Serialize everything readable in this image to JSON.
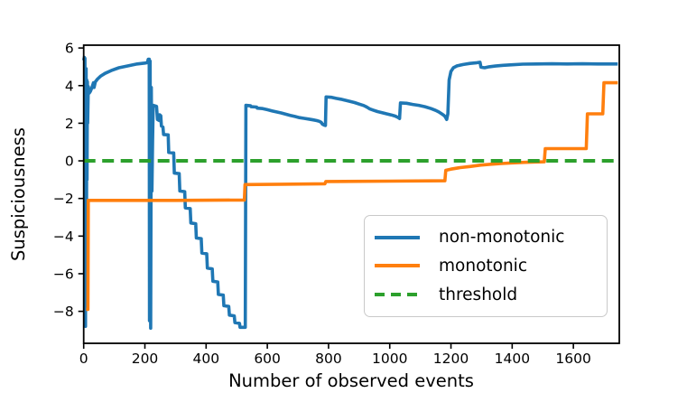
{
  "chart_data": {
    "type": "line",
    "title": "",
    "xlabel": "Number of observed events",
    "ylabel": "Suspiciousness",
    "xlim": [
      0,
      1750
    ],
    "ylim": [
      -9.7,
      6.15
    ],
    "xticks": [
      0,
      200,
      400,
      600,
      800,
      1000,
      1200,
      1400,
      1600
    ],
    "yticks": [
      6,
      4,
      2,
      0,
      -2,
      -4,
      -6,
      -8
    ],
    "grid": false,
    "background": "#ffffff",
    "axis_color": "#000000",
    "legend": {
      "position": "lower-right-inside",
      "entries": [
        "non-monotonic",
        "monotonic",
        "threshold"
      ]
    },
    "series": [
      {
        "name": "non-monotonic",
        "color": "#1f77b4",
        "line_style": "solid",
        "points": [
          [
            0,
            5.35
          ],
          [
            2,
            5.5
          ],
          [
            4,
            5.45
          ],
          [
            5,
            -3.0
          ],
          [
            6,
            -8.8
          ],
          [
            7,
            2.0
          ],
          [
            8,
            4.9
          ],
          [
            9,
            -4.5
          ],
          [
            10,
            4.3
          ],
          [
            11,
            -1.0
          ],
          [
            12,
            4.2
          ],
          [
            13,
            2.0
          ],
          [
            15,
            3.95
          ],
          [
            18,
            3.6
          ],
          [
            22,
            3.7
          ],
          [
            28,
            3.95
          ],
          [
            32,
            4.15
          ],
          [
            34,
            3.9
          ],
          [
            38,
            4.2
          ],
          [
            45,
            4.35
          ],
          [
            55,
            4.5
          ],
          [
            70,
            4.65
          ],
          [
            90,
            4.8
          ],
          [
            115,
            4.95
          ],
          [
            145,
            5.05
          ],
          [
            175,
            5.15
          ],
          [
            200,
            5.2
          ],
          [
            208,
            5.22
          ],
          [
            211,
            5.4
          ],
          [
            214,
            5.4
          ],
          [
            215,
            -8.5
          ],
          [
            217,
            5.3
          ],
          [
            219,
            -8.9
          ],
          [
            221,
            3.9
          ],
          [
            223,
            -1.6
          ],
          [
            225,
            1.0
          ],
          [
            227,
            2.95
          ],
          [
            238,
            2.9
          ],
          [
            241,
            2.2
          ],
          [
            246,
            2.15
          ],
          [
            248,
            2.45
          ],
          [
            252,
            2.4
          ],
          [
            254,
            1.85
          ],
          [
            259,
            1.8
          ],
          [
            261,
            1.4
          ],
          [
            276,
            1.38
          ],
          [
            278,
            0.45
          ],
          [
            294,
            0.42
          ],
          [
            296,
            -0.65
          ],
          [
            312,
            -0.68
          ],
          [
            314,
            -1.6
          ],
          [
            330,
            -1.64
          ],
          [
            332,
            -2.5
          ],
          [
            348,
            -2.54
          ],
          [
            350,
            -3.3
          ],
          [
            366,
            -3.34
          ],
          [
            368,
            -4.1
          ],
          [
            384,
            -4.14
          ],
          [
            386,
            -4.9
          ],
          [
            402,
            -4.94
          ],
          [
            404,
            -5.7
          ],
          [
            420,
            -5.74
          ],
          [
            422,
            -6.4
          ],
          [
            438,
            -6.44
          ],
          [
            440,
            -7.1
          ],
          [
            456,
            -7.14
          ],
          [
            458,
            -7.7
          ],
          [
            474,
            -7.74
          ],
          [
            476,
            -8.2
          ],
          [
            492,
            -8.24
          ],
          [
            494,
            -8.6
          ],
          [
            509,
            -8.64
          ],
          [
            511,
            -8.85
          ],
          [
            528,
            -8.85
          ],
          [
            530,
            2.95
          ],
          [
            545,
            2.93
          ],
          [
            547,
            2.88
          ],
          [
            565,
            2.86
          ],
          [
            567,
            2.8
          ],
          [
            585,
            2.78
          ],
          [
            600,
            2.72
          ],
          [
            615,
            2.66
          ],
          [
            630,
            2.6
          ],
          [
            645,
            2.55
          ],
          [
            660,
            2.48
          ],
          [
            675,
            2.42
          ],
          [
            690,
            2.36
          ],
          [
            705,
            2.3
          ],
          [
            720,
            2.26
          ],
          [
            735,
            2.22
          ],
          [
            750,
            2.18
          ],
          [
            762,
            2.14
          ],
          [
            770,
            2.1
          ],
          [
            776,
            2.05
          ],
          [
            780,
            1.95
          ],
          [
            786,
            1.9
          ],
          [
            790,
            1.88
          ],
          [
            792,
            3.4
          ],
          [
            810,
            3.38
          ],
          [
            825,
            3.32
          ],
          [
            840,
            3.28
          ],
          [
            855,
            3.22
          ],
          [
            870,
            3.16
          ],
          [
            885,
            3.1
          ],
          [
            900,
            3.02
          ],
          [
            915,
            2.94
          ],
          [
            925,
            2.86
          ],
          [
            935,
            2.76
          ],
          [
            945,
            2.7
          ],
          [
            960,
            2.62
          ],
          [
            975,
            2.56
          ],
          [
            990,
            2.5
          ],
          [
            1005,
            2.44
          ],
          [
            1018,
            2.38
          ],
          [
            1028,
            2.3
          ],
          [
            1032,
            2.25
          ],
          [
            1035,
            3.08
          ],
          [
            1055,
            3.06
          ],
          [
            1075,
            3.0
          ],
          [
            1095,
            2.95
          ],
          [
            1115,
            2.88
          ],
          [
            1135,
            2.78
          ],
          [
            1150,
            2.68
          ],
          [
            1160,
            2.6
          ],
          [
            1168,
            2.52
          ],
          [
            1175,
            2.44
          ],
          [
            1181,
            2.35
          ],
          [
            1186,
            2.2
          ],
          [
            1190,
            2.5
          ],
          [
            1194,
            4.3
          ],
          [
            1200,
            4.75
          ],
          [
            1208,
            4.95
          ],
          [
            1220,
            5.05
          ],
          [
            1240,
            5.12
          ],
          [
            1262,
            5.18
          ],
          [
            1285,
            5.22
          ],
          [
            1295,
            5.24
          ],
          [
            1298,
            4.98
          ],
          [
            1310,
            4.95
          ],
          [
            1325,
            5.0
          ],
          [
            1345,
            5.04
          ],
          [
            1370,
            5.08
          ],
          [
            1400,
            5.11
          ],
          [
            1435,
            5.14
          ],
          [
            1480,
            5.15
          ],
          [
            1530,
            5.16
          ],
          [
            1580,
            5.15
          ],
          [
            1630,
            5.16
          ],
          [
            1680,
            5.15
          ],
          [
            1745,
            5.15
          ]
        ]
      },
      {
        "name": "monotonic",
        "color": "#ff7f0e",
        "line_style": "solid",
        "points": [
          [
            8,
            -7.9
          ],
          [
            14,
            -7.9
          ],
          [
            15,
            -2.1
          ],
          [
            300,
            -2.1
          ],
          [
            525,
            -2.08
          ],
          [
            527,
            -1.26
          ],
          [
            650,
            -1.24
          ],
          [
            788,
            -1.22
          ],
          [
            791,
            -1.1
          ],
          [
            1000,
            -1.08
          ],
          [
            1180,
            -1.06
          ],
          [
            1183,
            -0.5
          ],
          [
            1200,
            -0.44
          ],
          [
            1230,
            -0.36
          ],
          [
            1262,
            -0.3
          ],
          [
            1295,
            -0.23
          ],
          [
            1330,
            -0.18
          ],
          [
            1365,
            -0.14
          ],
          [
            1400,
            -0.11
          ],
          [
            1440,
            -0.08
          ],
          [
            1475,
            -0.06
          ],
          [
            1505,
            -0.05
          ],
          [
            1508,
            0.65
          ],
          [
            1642,
            0.65
          ],
          [
            1646,
            2.5
          ],
          [
            1696,
            2.5
          ],
          [
            1700,
            4.15
          ],
          [
            1745,
            4.15
          ]
        ]
      },
      {
        "name": "threshold",
        "color": "#2ca02c",
        "line_style": "dashed",
        "points": [
          [
            0,
            0
          ],
          [
            1750,
            0
          ]
        ]
      }
    ]
  }
}
